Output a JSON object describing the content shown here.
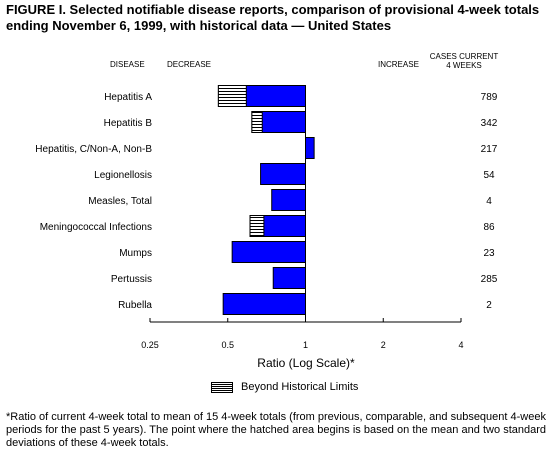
{
  "title": "FIGURE I. Selected notifiable disease reports, comparison of provisional 4-week totals ending November 6, 1999, with historical data — United States",
  "headers": {
    "disease": "DISEASE",
    "decrease": "DECREASE",
    "increase": "INCREASE",
    "cases_line1": "CASES CURRENT",
    "cases_line2": "4 WEEKS"
  },
  "legend_label": "Beyond Historical Limits",
  "footnote": "*Ratio of current 4-week total to mean of 15 4-week totals (from previous, comparable, and subsequent 4-week periods for the past 5 years). The point where the hatched area begins is based on the mean and two standard deviations of these 4-week totals.",
  "colors": {
    "bar": "#0000ff",
    "outline": "#000000"
  },
  "chart_data": {
    "type": "bar",
    "orientation": "horizontal",
    "xscale": "log",
    "xlabel": "Ratio (Log Scale)*",
    "xlim": [
      0.25,
      4
    ],
    "xticks": [
      0.25,
      0.5,
      1,
      2,
      4
    ],
    "xtick_labels": [
      "0.25",
      "0.5",
      "1",
      "2",
      "4"
    ],
    "reference": 1,
    "categories": [
      "Hepatitis A",
      "Hepatitis B",
      "Hepatitis, C/Non-A, Non-B",
      "Legionellosis",
      "Measles, Total",
      "Meningococcal Infections",
      "Mumps",
      "Pertussis",
      "Rubella"
    ],
    "values": [
      0.46,
      0.62,
      1.08,
      0.67,
      0.74,
      0.61,
      0.52,
      0.75,
      0.48
    ],
    "hatch_until": [
      0.59,
      0.68,
      null,
      null,
      null,
      0.69,
      null,
      null,
      null
    ],
    "cases_current_4_weeks": [
      "789",
      "342",
      "217",
      "54",
      "4",
      "86",
      "23",
      "285",
      "2"
    ]
  }
}
